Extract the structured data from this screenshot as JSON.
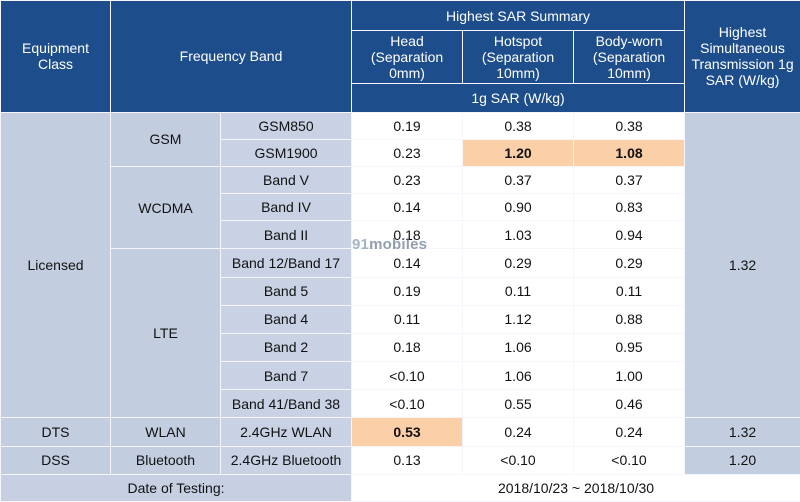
{
  "header": {
    "equipment_class": "Equipment Class",
    "frequency_band": "Frequency Band",
    "summary_title": "Highest SAR Summary",
    "head": "Head (Separation 0mm)",
    "hotspot": "Hotspot (Separation 10mm)",
    "body_worn": "Body-worn (Separation 10mm)",
    "unit": "1g SAR (W/kg)",
    "simultaneous": "Highest Simultaneous Transmission 1g SAR (W/kg)"
  },
  "classes": {
    "licensed": "Licensed",
    "dts": "DTS",
    "dss": "DSS"
  },
  "groups": {
    "gsm": "GSM",
    "wcdma": "WCDMA",
    "lte": "LTE",
    "wlan": "WLAN",
    "bluetooth": "Bluetooth"
  },
  "rows": [
    {
      "band": "GSM850",
      "head": "0.19",
      "hotspot": "0.38",
      "body": "0.38"
    },
    {
      "band": "GSM1900",
      "head": "0.23",
      "hotspot": "1.20",
      "body": "1.08"
    },
    {
      "band": "Band V",
      "head": "0.23",
      "hotspot": "0.37",
      "body": "0.37"
    },
    {
      "band": "Band IV",
      "head": "0.14",
      "hotspot": "0.90",
      "body": "0.83"
    },
    {
      "band": "Band II",
      "head": "0.18",
      "hotspot": "1.03",
      "body": "0.94"
    },
    {
      "band": "Band 12/Band 17",
      "head": "0.14",
      "hotspot": "0.29",
      "body": "0.29"
    },
    {
      "band": "Band 5",
      "head": "0.19",
      "hotspot": "0.11",
      "body": "0.11"
    },
    {
      "band": "Band 4",
      "head": "0.11",
      "hotspot": "1.12",
      "body": "0.88"
    },
    {
      "band": "Band 2",
      "head": "0.18",
      "hotspot": "1.06",
      "body": "0.95"
    },
    {
      "band": "Band 7",
      "head": "<0.10",
      "hotspot": "1.06",
      "body": "1.00"
    },
    {
      "band": "Band 41/Band 38",
      "head": "<0.10",
      "hotspot": "0.55",
      "body": "0.46"
    },
    {
      "band": "2.4GHz WLAN",
      "head": "0.53",
      "hotspot": "0.24",
      "body": "0.24"
    },
    {
      "band": "2.4GHz Bluetooth",
      "head": "0.13",
      "hotspot": "<0.10",
      "body": "<0.10"
    }
  ],
  "simultaneous": {
    "licensed": "1.32",
    "dts": "1.32",
    "dss": "1.20"
  },
  "footer": {
    "label": "Date of Testing:",
    "value": "2018/10/23 ~ 2018/10/30"
  },
  "watermark": {
    "number": "91",
    "brand": "mobiles"
  },
  "colors": {
    "header_bg": "#1d4e8b",
    "cell_bg": "#c6d0e2",
    "value_bg": "#ffffff",
    "highlight_bg": "#fbcfa7"
  }
}
